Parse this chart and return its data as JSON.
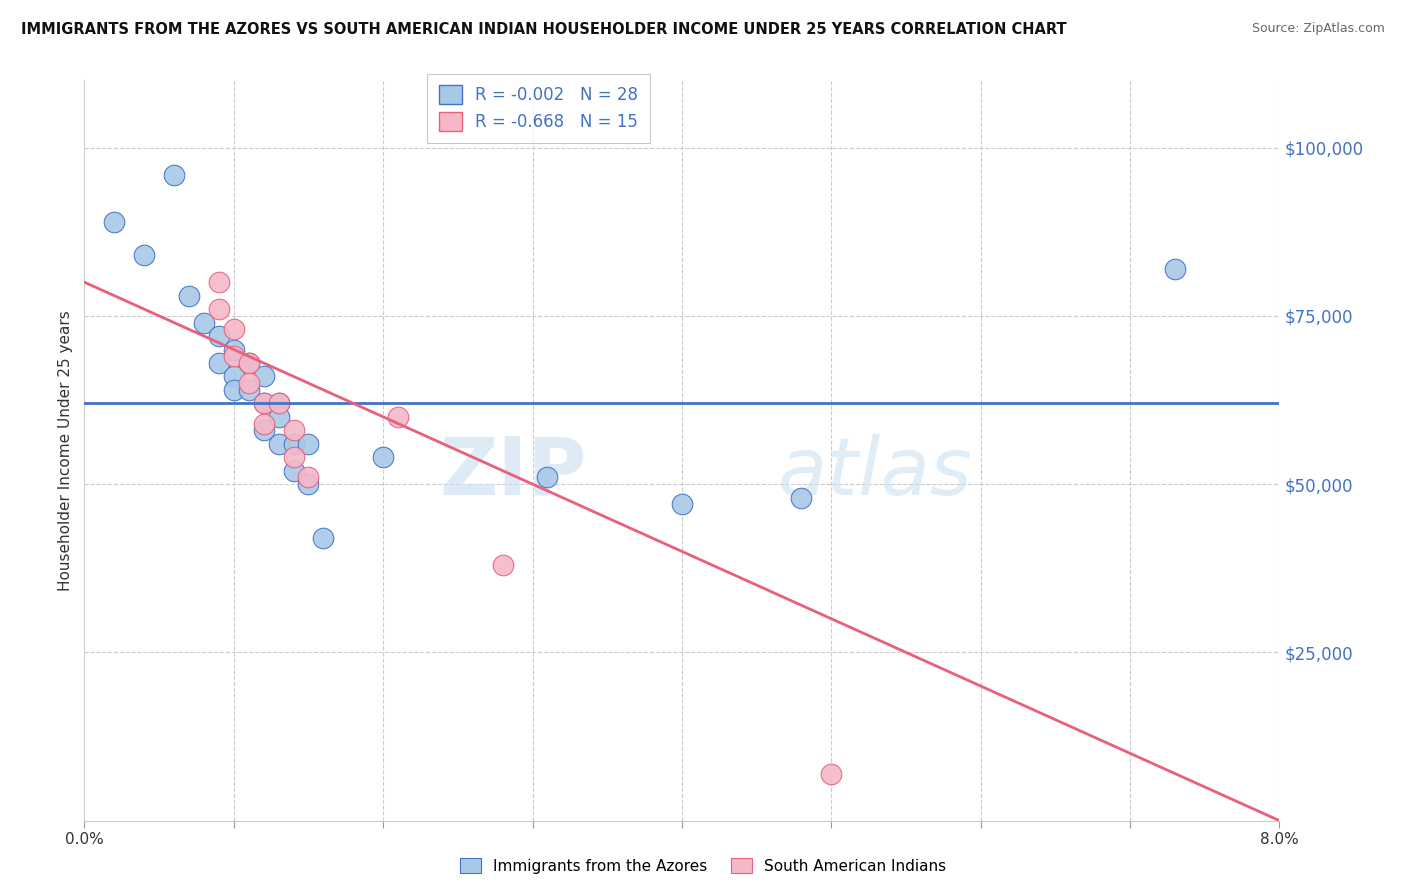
{
  "title": "IMMIGRANTS FROM THE AZORES VS SOUTH AMERICAN INDIAN HOUSEHOLDER INCOME UNDER 25 YEARS CORRELATION CHART",
  "source": "Source: ZipAtlas.com",
  "ylabel": "Householder Income Under 25 years",
  "xlim": [
    0.0,
    0.08
  ],
  "ylim": [
    0,
    110000
  ],
  "yticks": [
    0,
    25000,
    50000,
    75000,
    100000
  ],
  "xticks": [
    0.0,
    0.01,
    0.02,
    0.03,
    0.04,
    0.05,
    0.06,
    0.07,
    0.08
  ],
  "xtick_labels": [
    "0.0%",
    "",
    "",
    "",
    "",
    "",
    "",
    "",
    "8.0%"
  ],
  "color_blue": "#a8c8e8",
  "color_pink": "#f5b8c8",
  "line_blue": "#4472c4",
  "line_pink": "#e8607a",
  "text_blue": "#4472c4",
  "watermark_zip": "ZIP",
  "watermark_atlas": "atlas",
  "blue_scatter": [
    [
      0.002,
      89000
    ],
    [
      0.004,
      84000
    ],
    [
      0.006,
      96000
    ],
    [
      0.007,
      78000
    ],
    [
      0.008,
      74000
    ],
    [
      0.009,
      72000
    ],
    [
      0.009,
      68000
    ],
    [
      0.01,
      70000
    ],
    [
      0.01,
      66000
    ],
    [
      0.01,
      64000
    ],
    [
      0.011,
      68000
    ],
    [
      0.011,
      64000
    ],
    [
      0.012,
      66000
    ],
    [
      0.012,
      62000
    ],
    [
      0.012,
      58000
    ],
    [
      0.013,
      62000
    ],
    [
      0.013,
      60000
    ],
    [
      0.013,
      56000
    ],
    [
      0.014,
      56000
    ],
    [
      0.014,
      52000
    ],
    [
      0.015,
      56000
    ],
    [
      0.015,
      50000
    ],
    [
      0.016,
      42000
    ],
    [
      0.02,
      54000
    ],
    [
      0.031,
      51000
    ],
    [
      0.04,
      47000
    ],
    [
      0.048,
      48000
    ],
    [
      0.073,
      82000
    ]
  ],
  "pink_scatter": [
    [
      0.009,
      80000
    ],
    [
      0.009,
      76000
    ],
    [
      0.01,
      73000
    ],
    [
      0.01,
      69000
    ],
    [
      0.011,
      68000
    ],
    [
      0.011,
      65000
    ],
    [
      0.012,
      62000
    ],
    [
      0.012,
      59000
    ],
    [
      0.013,
      62000
    ],
    [
      0.014,
      58000
    ],
    [
      0.014,
      54000
    ],
    [
      0.015,
      51000
    ],
    [
      0.021,
      60000
    ],
    [
      0.028,
      38000
    ],
    [
      0.05,
      7000
    ]
  ],
  "blue_trend_x": [
    0.0,
    0.08
  ],
  "blue_trend_y": [
    62000,
    62000
  ],
  "pink_trend_x": [
    0.0,
    0.08
  ],
  "pink_trend_y": [
    80000,
    0
  ],
  "background_color": "#ffffff",
  "grid_color": "#cccccc"
}
